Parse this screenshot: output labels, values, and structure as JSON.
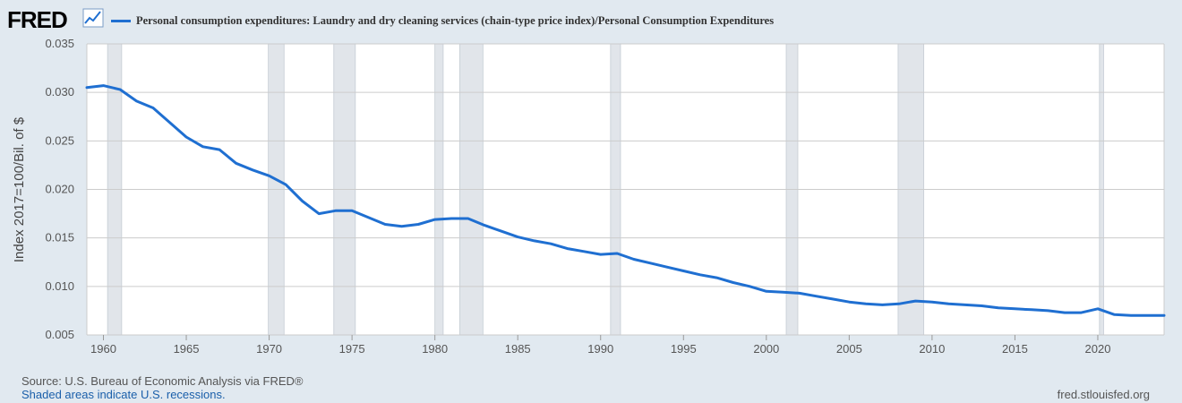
{
  "header": {
    "logo_text": "FRED",
    "logo_icon": "line-chart-icon"
  },
  "colors": {
    "series": "#1f6fd1",
    "background": "#e1e9f0",
    "plot_background": "#ffffff",
    "recession": "#e1e5ea",
    "grid": "#cccccc"
  },
  "footer": {
    "source": "Source: U.S. Bureau of Economic Analysis via FRED®",
    "recession_note": "Shaded areas indicate U.S. recessions.",
    "url": "fred.stlouisfed.org"
  },
  "chart_data": {
    "type": "line",
    "title": "",
    "xlabel": "",
    "ylabel": "Index 2017=100/Bil. of $",
    "xlim": [
      1959,
      2024
    ],
    "ylim": [
      0.005,
      0.035
    ],
    "y_ticks": [
      "0.005",
      "0.010",
      "0.015",
      "0.020",
      "0.025",
      "0.030",
      "0.035"
    ],
    "x_ticks": [
      1960,
      1965,
      1970,
      1975,
      1980,
      1985,
      1990,
      1995,
      2000,
      2005,
      2010,
      2015,
      2020
    ],
    "grid": true,
    "legend_position": "top-left",
    "recessions": [
      [
        1960.25,
        1961.1
      ],
      [
        1969.95,
        1970.9
      ],
      [
        1973.9,
        1975.2
      ],
      [
        1980.0,
        1980.5
      ],
      [
        1981.5,
        1982.9
      ],
      [
        1990.6,
        1991.2
      ],
      [
        2001.2,
        2001.9
      ],
      [
        2007.95,
        2009.5
      ],
      [
        2020.1,
        2020.35
      ]
    ],
    "series": [
      {
        "name": "Personal consumption expenditures: Laundry and dry cleaning services (chain-type price index)/Personal Consumption Expenditures",
        "x": [
          1959,
          1960,
          1961,
          1962,
          1963,
          1964,
          1965,
          1966,
          1967,
          1968,
          1969,
          1970,
          1971,
          1972,
          1973,
          1974,
          1975,
          1976,
          1977,
          1978,
          1979,
          1980,
          1981,
          1982,
          1983,
          1984,
          1985,
          1986,
          1987,
          1988,
          1989,
          1990,
          1991,
          1992,
          1993,
          1994,
          1995,
          1996,
          1997,
          1998,
          1999,
          2000,
          2001,
          2002,
          2003,
          2004,
          2005,
          2006,
          2007,
          2008,
          2009,
          2010,
          2011,
          2012,
          2013,
          2014,
          2015,
          2016,
          2017,
          2018,
          2019,
          2020,
          2021,
          2022,
          2023,
          2024
        ],
        "values": [
          0.0305,
          0.0307,
          0.0303,
          0.0291,
          0.0284,
          0.0269,
          0.0254,
          0.0244,
          0.0241,
          0.0227,
          0.022,
          0.0214,
          0.0205,
          0.0188,
          0.0175,
          0.0178,
          0.0178,
          0.0171,
          0.0164,
          0.0162,
          0.0164,
          0.0169,
          0.017,
          0.017,
          0.0163,
          0.0157,
          0.0151,
          0.0147,
          0.0144,
          0.0139,
          0.0136,
          0.0133,
          0.0134,
          0.0128,
          0.0124,
          0.012,
          0.0116,
          0.0112,
          0.0109,
          0.0104,
          0.01,
          0.0095,
          0.0094,
          0.0093,
          0.009,
          0.0087,
          0.0084,
          0.0082,
          0.0081,
          0.0082,
          0.0085,
          0.0084,
          0.0082,
          0.0081,
          0.008,
          0.0078,
          0.0077,
          0.0076,
          0.0075,
          0.0073,
          0.0073,
          0.0077,
          0.0071,
          0.007,
          0.007,
          0.007
        ]
      }
    ]
  }
}
